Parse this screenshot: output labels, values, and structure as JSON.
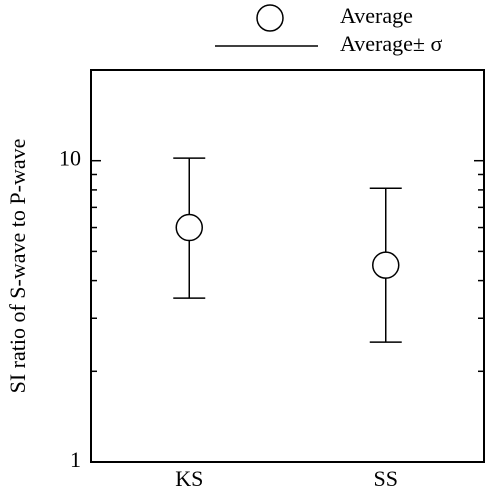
{
  "chart_data": {
    "type": "errorbar",
    "ylabel": "SI ratio of S-wave to P-wave",
    "categories": [
      "KS",
      "SS"
    ],
    "series": [
      {
        "name": "Average",
        "color": "#000000",
        "values": [
          6.0,
          4.5
        ]
      }
    ],
    "error": {
      "name": "Average± σ",
      "color": "#000000",
      "lower": [
        3.5,
        2.5
      ],
      "upper": [
        10.2,
        8.1
      ]
    },
    "ylim": [
      1,
      20
    ],
    "yticks": [
      1,
      10
    ],
    "yminorticks": [
      2,
      3,
      4,
      5,
      6,
      7,
      8,
      9,
      20
    ],
    "log_y": true,
    "legend": "top"
  }
}
